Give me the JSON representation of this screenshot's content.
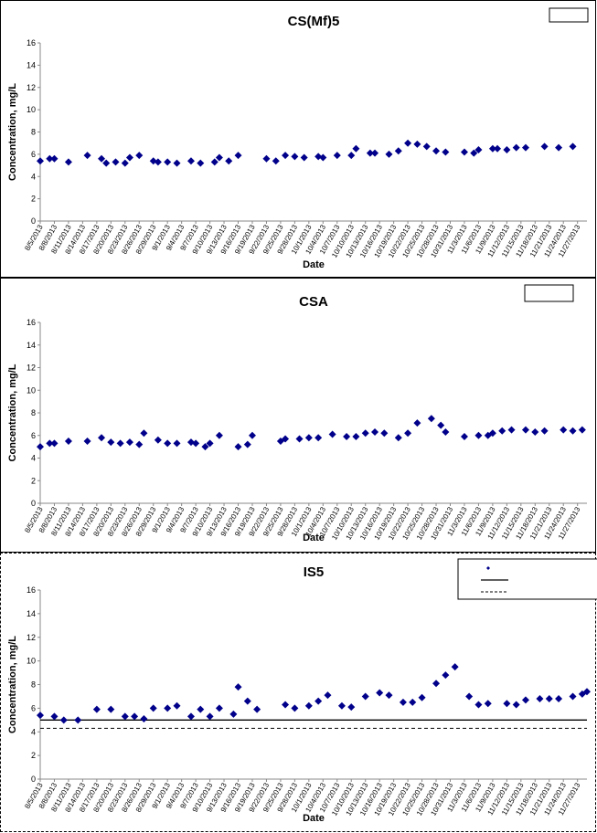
{
  "chart_data": [
    {
      "type": "scatter",
      "title": "CS(Mf)5",
      "xlabel": "Date",
      "ylabel": "Concentration, mg/L",
      "ylim": [
        0,
        16
      ],
      "yticks": [
        0,
        2,
        4,
        6,
        8,
        10,
        12,
        14,
        16
      ],
      "xlim": [
        "8/5/2013",
        "11/29/2013"
      ],
      "xticks": [
        "8/5/2013",
        "8/8/2013",
        "8/11/2013",
        "8/14/2013",
        "8/17/2013",
        "8/20/2013",
        "8/23/2013",
        "8/26/2013",
        "8/29/2013",
        "9/1/2013",
        "9/4/2013",
        "9/7/2013",
        "9/10/2013",
        "9/13/2013",
        "9/16/2013",
        "9/19/2013",
        "9/22/2013",
        "9/25/2013",
        "9/28/2013",
        "10/1/2013",
        "10/4/2013",
        "10/7/2013",
        "10/10/2013",
        "10/13/2013",
        "10/16/2013",
        "10/19/2013",
        "10/22/2013",
        "10/25/2013",
        "10/28/2013",
        "10/31/2013",
        "11/3/2013",
        "11/6/2013",
        "11/9/2013",
        "11/12/2013",
        "11/15/2013",
        "11/18/2013",
        "11/21/2013",
        "11/24/2013",
        "11/27/2013"
      ],
      "legend": {
        "position": "top-right",
        "entries": []
      },
      "reference_lines": [],
      "series": [
        {
          "color": "#00008b",
          "marker": "diamond",
          "x": [
            "8/5/2013",
            "8/7/2013",
            "8/8/2013",
            "8/11/2013",
            "8/15/2013",
            "8/18/2013",
            "8/19/2013",
            "8/21/2013",
            "8/23/2013",
            "8/24/2013",
            "8/26/2013",
            "8/29/2013",
            "8/30/2013",
            "9/1/2013",
            "9/3/2013",
            "9/6/2013",
            "9/8/2013",
            "9/11/2013",
            "9/12/2013",
            "9/14/2013",
            "9/16/2013",
            "9/22/2013",
            "9/24/2013",
            "9/26/2013",
            "9/28/2013",
            "9/30/2013",
            "10/3/2013",
            "10/4/2013",
            "10/7/2013",
            "10/10/2013",
            "10/11/2013",
            "10/14/2013",
            "10/15/2013",
            "10/18/2013",
            "10/20/2013",
            "10/22/2013",
            "10/24/2013",
            "10/26/2013",
            "10/28/2013",
            "10/30/2013",
            "11/3/2013",
            "11/5/2013",
            "11/6/2013",
            "11/9/2013",
            "11/10/2013",
            "11/12/2013",
            "11/14/2013",
            "11/16/2013",
            "11/20/2013",
            "11/23/2013",
            "11/26/2013"
          ],
          "y": [
            5.4,
            5.6,
            5.6,
            5.3,
            5.9,
            5.6,
            5.2,
            5.3,
            5.2,
            5.7,
            5.9,
            5.4,
            5.3,
            5.3,
            5.2,
            5.4,
            5.2,
            5.3,
            5.7,
            5.4,
            5.9,
            5.6,
            5.4,
            5.9,
            5.8,
            5.7,
            5.8,
            5.7,
            5.9,
            5.9,
            6.5,
            6.1,
            6.1,
            6.0,
            6.3,
            7.0,
            6.9,
            6.7,
            6.3,
            6.2,
            6.2,
            6.1,
            6.4,
            6.5,
            6.5,
            6.4,
            6.6,
            6.6,
            6.7,
            6.6,
            6.7
          ]
        }
      ]
    },
    {
      "type": "scatter",
      "title": "CSA",
      "xlabel": "Date",
      "ylabel": "Concentration, mg/L",
      "ylim": [
        0,
        16
      ],
      "yticks": [
        0,
        2,
        4,
        6,
        8,
        10,
        12,
        14,
        16
      ],
      "xlim": [
        "8/5/2013",
        "11/29/2013"
      ],
      "xticks": [
        "8/5/2013",
        "8/8/2013",
        "8/11/2013",
        "8/14/2013",
        "8/17/2013",
        "8/20/2013",
        "8/23/2013",
        "8/26/2013",
        "8/29/2013",
        "9/1/2013",
        "9/4/2013",
        "9/7/2013",
        "9/10/2013",
        "9/13/2013",
        "9/16/2013",
        "9/19/2013",
        "9/22/2013",
        "9/25/2013",
        "9/28/2013",
        "10/1/2013",
        "10/4/2013",
        "10/7/2013",
        "10/10/2013",
        "10/13/2013",
        "10/16/2013",
        "10/19/2013",
        "10/22/2013",
        "10/25/2013",
        "10/28/2013",
        "10/31/2013",
        "11/3/2013",
        "11/6/2013",
        "11/9/2013",
        "11/12/2013",
        "11/15/2013",
        "11/18/2013",
        "11/21/2013",
        "11/24/2013",
        "11/27/2013"
      ],
      "legend": {
        "position": "top-right",
        "entries": []
      },
      "reference_lines": [],
      "series": [
        {
          "color": "#00008b",
          "marker": "diamond",
          "x": [
            "8/5/2013",
            "8/7/2013",
            "8/8/2013",
            "8/11/2013",
            "8/15/2013",
            "8/18/2013",
            "8/20/2013",
            "8/22/2013",
            "8/24/2013",
            "8/26/2013",
            "8/27/2013",
            "8/30/2013",
            "9/1/2013",
            "9/3/2013",
            "9/6/2013",
            "9/7/2013",
            "9/9/2013",
            "9/10/2013",
            "9/12/2013",
            "9/16/2013",
            "9/18/2013",
            "9/19/2013",
            "9/25/2013",
            "9/26/2013",
            "9/29/2013",
            "10/1/2013",
            "10/3/2013",
            "10/6/2013",
            "10/9/2013",
            "10/11/2013",
            "10/13/2013",
            "10/15/2013",
            "10/17/2013",
            "10/20/2013",
            "10/22/2013",
            "10/24/2013",
            "10/27/2013",
            "10/29/2013",
            "10/30/2013",
            "11/3/2013",
            "11/6/2013",
            "11/8/2013",
            "11/9/2013",
            "11/11/2013",
            "11/13/2013",
            "11/16/2013",
            "11/18/2013",
            "11/20/2013",
            "11/24/2013",
            "11/26/2013",
            "11/28/2013"
          ],
          "y": [
            5.0,
            5.3,
            5.3,
            5.5,
            5.5,
            5.8,
            5.4,
            5.3,
            5.4,
            5.2,
            6.2,
            5.6,
            5.3,
            5.3,
            5.4,
            5.3,
            5.0,
            5.3,
            6.0,
            5.0,
            5.2,
            6.0,
            5.5,
            5.7,
            5.7,
            5.8,
            5.8,
            6.1,
            5.9,
            5.9,
            6.2,
            6.3,
            6.2,
            5.8,
            6.2,
            7.1,
            7.5,
            6.9,
            6.3,
            5.9,
            6.0,
            6.0,
            6.2,
            6.4,
            6.5,
            6.5,
            6.3,
            6.4,
            6.5,
            6.4,
            6.5
          ]
        }
      ]
    },
    {
      "type": "scatter",
      "title": "IS5",
      "xlabel": "Date",
      "ylabel": "Concentration, mg/L",
      "ylim": [
        0,
        16
      ],
      "yticks": [
        0,
        2,
        4,
        6,
        8,
        10,
        12,
        14,
        16
      ],
      "xlim": [
        "8/5/2013",
        "11/29/2013"
      ],
      "xticks": [
        "8/5/2013",
        "8/8/2013",
        "8/11/2013",
        "8/14/2013",
        "8/17/2013",
        "8/20/2013",
        "8/23/2013",
        "8/26/2013",
        "8/29/2013",
        "9/1/2013",
        "9/4/2013",
        "9/7/2013",
        "9/10/2013",
        "9/13/2013",
        "9/16/2013",
        "9/19/2013",
        "9/22/2013",
        "9/25/2013",
        "9/28/2013",
        "10/1/2013",
        "10/4/2013",
        "10/7/2013",
        "10/10/2013",
        "10/13/2013",
        "10/16/2013",
        "10/19/2013",
        "10/22/2013",
        "10/25/2013",
        "10/28/2013",
        "10/31/2013",
        "11/3/2013",
        "11/6/2013",
        "11/9/2013",
        "11/12/2013",
        "11/15/2013",
        "11/18/2013",
        "11/21/2013",
        "11/24/2013",
        "11/27/2013"
      ],
      "legend": {
        "position": "top-right",
        "entries": []
      },
      "reference_lines": [
        {
          "y": 5.0,
          "style": "solid"
        },
        {
          "y": 4.3,
          "style": "dashed"
        }
      ],
      "series": [
        {
          "color": "#00008b",
          "marker": "diamond",
          "x": [
            "8/5/2013",
            "8/8/2013",
            "8/10/2013",
            "8/13/2013",
            "8/17/2013",
            "8/20/2013",
            "8/23/2013",
            "8/25/2013",
            "8/27/2013",
            "8/29/2013",
            "9/1/2013",
            "9/3/2013",
            "9/6/2013",
            "9/8/2013",
            "9/10/2013",
            "9/12/2013",
            "9/15/2013",
            "9/16/2013",
            "9/18/2013",
            "9/20/2013",
            "9/26/2013",
            "9/28/2013",
            "10/1/2013",
            "10/3/2013",
            "10/5/2013",
            "10/8/2013",
            "10/10/2013",
            "10/13/2013",
            "10/16/2013",
            "10/18/2013",
            "10/21/2013",
            "10/23/2013",
            "10/25/2013",
            "10/28/2013",
            "10/30/2013",
            "11/1/2013",
            "11/4/2013",
            "11/6/2013",
            "11/8/2013",
            "11/12/2013",
            "11/14/2013",
            "11/16/2013",
            "11/19/2013",
            "11/21/2013",
            "11/23/2013",
            "11/26/2013",
            "11/28/2013",
            "11/29/2013"
          ],
          "y": [
            5.4,
            5.3,
            5.0,
            5.0,
            5.9,
            5.9,
            5.3,
            5.3,
            5.1,
            6.0,
            6.0,
            6.2,
            5.3,
            5.9,
            5.3,
            6.0,
            5.5,
            7.8,
            6.6,
            5.9,
            6.3,
            6.0,
            6.2,
            6.6,
            7.1,
            6.2,
            6.1,
            7.0,
            7.3,
            7.1,
            6.5,
            6.5,
            6.9,
            8.1,
            8.8,
            9.5,
            7.0,
            6.3,
            6.4,
            6.4,
            6.3,
            6.7,
            6.8,
            6.8,
            6.8,
            7.0,
            7.2,
            7.4
          ]
        }
      ]
    }
  ]
}
